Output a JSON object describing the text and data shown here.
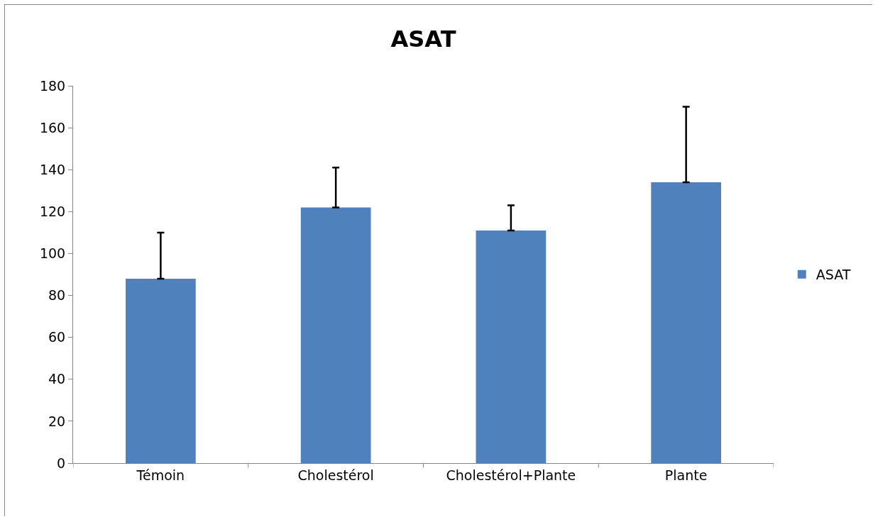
{
  "chart_data": {
    "type": "bar",
    "title": "ASAT",
    "categories": [
      "Témoin",
      "Cholestérol",
      "Cholestérol+Plante",
      "Plante"
    ],
    "series": [
      {
        "name": "ASAT",
        "color": "#4f81bd",
        "values": [
          88,
          122,
          111,
          134
        ],
        "errors": [
          [
            88,
            110
          ],
          [
            122,
            141
          ],
          [
            111,
            123
          ],
          [
            134,
            170
          ]
        ]
      }
    ],
    "ylim": [
      0,
      180
    ],
    "yticks": [
      0,
      20,
      40,
      60,
      80,
      100,
      120,
      140,
      160,
      180
    ],
    "grid": false,
    "legend": "right"
  }
}
